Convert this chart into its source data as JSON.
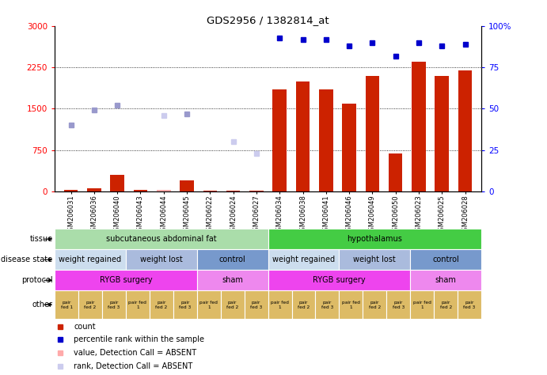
{
  "title": "GDS2956 / 1382814_at",
  "samples": [
    "GSM206031",
    "GSM206036",
    "GSM206040",
    "GSM206043",
    "GSM206044",
    "GSM206045",
    "GSM206022",
    "GSM206024",
    "GSM206027",
    "GSM206034",
    "GSM206038",
    "GSM206041",
    "GSM206046",
    "GSM206049",
    "GSM206050",
    "GSM206023",
    "GSM206025",
    "GSM206028"
  ],
  "bar_values": [
    30,
    60,
    300,
    30,
    30,
    200,
    15,
    15,
    15,
    1850,
    2000,
    1850,
    1600,
    2100,
    680,
    2350,
    2100,
    2200
  ],
  "bar_absent": [
    false,
    false,
    false,
    false,
    true,
    false,
    false,
    false,
    false,
    false,
    false,
    false,
    false,
    false,
    false,
    false,
    false,
    false
  ],
  "rank_values": [
    1200,
    1480,
    1560,
    null,
    1380,
    1400,
    null,
    900,
    680,
    null,
    null,
    null,
    null,
    null,
    null,
    null,
    null,
    null
  ],
  "rank_absent": [
    false,
    false,
    false,
    null,
    true,
    false,
    null,
    true,
    true,
    null,
    null,
    null,
    null,
    null,
    null,
    null,
    null,
    null
  ],
  "pct_values": [
    null,
    null,
    null,
    null,
    null,
    null,
    null,
    null,
    null,
    93,
    92,
    92,
    88,
    90,
    82,
    90,
    88,
    89
  ],
  "pct_absent": [
    null,
    null,
    null,
    null,
    null,
    null,
    null,
    null,
    null,
    false,
    false,
    false,
    false,
    false,
    false,
    false,
    false,
    false
  ],
  "ylim_left": [
    0,
    3000
  ],
  "ylim_right": [
    0,
    100
  ],
  "yticks_left": [
    0,
    750,
    1500,
    2250,
    3000
  ],
  "yticks_right": [
    0,
    25,
    50,
    75,
    100
  ],
  "bar_color": "#cc2200",
  "bar_absent_color": "#ffaaaa",
  "rank_color": "#9999cc",
  "rank_absent_color": "#ccccee",
  "pct_color": "#0000cc",
  "pct_absent_color": "#8888cc",
  "tissue_row": {
    "groups": [
      {
        "label": "subcutaneous abdominal fat",
        "start": 0,
        "end": 9,
        "color": "#aaddaa"
      },
      {
        "label": "hypothalamus",
        "start": 9,
        "end": 18,
        "color": "#44cc44"
      }
    ]
  },
  "disease_row": {
    "groups": [
      {
        "label": "weight regained",
        "start": 0,
        "end": 3,
        "color": "#ccddee"
      },
      {
        "label": "weight lost",
        "start": 3,
        "end": 6,
        "color": "#aabbdd"
      },
      {
        "label": "control",
        "start": 6,
        "end": 9,
        "color": "#7799cc"
      },
      {
        "label": "weight regained",
        "start": 9,
        "end": 12,
        "color": "#ccddee"
      },
      {
        "label": "weight lost",
        "start": 12,
        "end": 15,
        "color": "#aabbdd"
      },
      {
        "label": "control",
        "start": 15,
        "end": 18,
        "color": "#7799cc"
      }
    ]
  },
  "protocol_row": {
    "groups": [
      {
        "label": "RYGB surgery",
        "start": 0,
        "end": 6,
        "color": "#ee44ee"
      },
      {
        "label": "sham",
        "start": 6,
        "end": 9,
        "color": "#ee88ee"
      },
      {
        "label": "RYGB surgery",
        "start": 9,
        "end": 15,
        "color": "#ee44ee"
      },
      {
        "label": "sham",
        "start": 15,
        "end": 18,
        "color": "#ee88ee"
      }
    ]
  },
  "other_row": {
    "cells": [
      "pair\nfed 1",
      "pair\nfed 2",
      "pair\nfed 3",
      "pair fed\n1",
      "pair\nfed 2",
      "pair\nfed 3",
      "pair fed\n1",
      "pair\nfed 2",
      "pair\nfed 3",
      "pair fed\n1",
      "pair\nfed 2",
      "pair\nfed 3",
      "pair fed\n1",
      "pair\nfed 2",
      "pair\nfed 3",
      "pair fed\n1",
      "pair\nfed 2",
      "pair\nfed 3"
    ],
    "color": "#ddbb66"
  },
  "row_labels": [
    "tissue",
    "disease state",
    "protocol",
    "other"
  ],
  "legend_items": [
    {
      "label": "count",
      "color": "#cc2200"
    },
    {
      "label": "percentile rank within the sample",
      "color": "#0000cc"
    },
    {
      "label": "value, Detection Call = ABSENT",
      "color": "#ffaaaa"
    },
    {
      "label": "rank, Detection Call = ABSENT",
      "color": "#ccccee"
    }
  ]
}
